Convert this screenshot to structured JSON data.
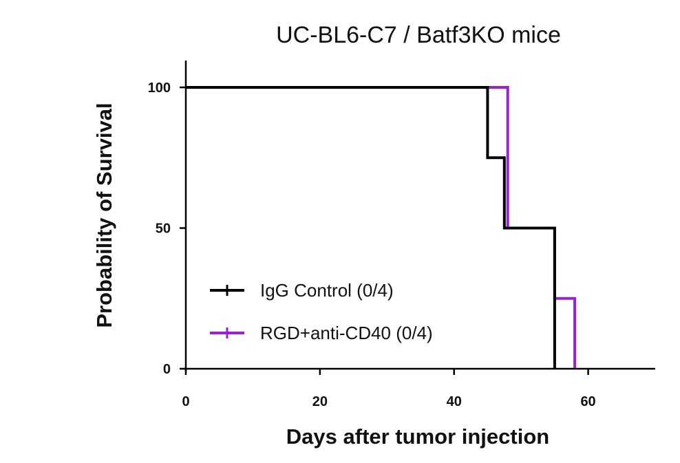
{
  "chart_data": {
    "type": "line",
    "title": "UC-BL6-C7 / Batf3KO mice",
    "xlabel": "Days after tumor injection",
    "ylabel": "Probability of Survival",
    "xlim": [
      0,
      70
    ],
    "ylim": [
      0,
      100
    ],
    "xticks": [
      0,
      20,
      40,
      60
    ],
    "yticks": [
      0,
      50,
      100
    ],
    "grid": false,
    "legend_position": "bottom-left",
    "series": [
      {
        "name": "IgG Control (0/4)",
        "color": "#000000",
        "x": [
          0,
          45,
          45,
          47.5,
          47.5,
          55,
          55
        ],
        "y": [
          100,
          100,
          75,
          75,
          50,
          50,
          0
        ]
      },
      {
        "name": "RGD+anti-CD40 (0/4)",
        "color": "#9b1fd6",
        "x": [
          0,
          48,
          48,
          55,
          55,
          58,
          58
        ],
        "y": [
          100,
          100,
          50,
          50,
          25,
          25,
          0
        ]
      }
    ]
  }
}
